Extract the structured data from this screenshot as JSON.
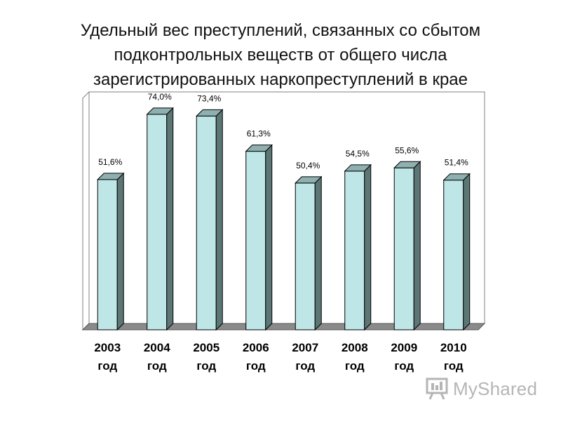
{
  "title_lines": [
    "Удельный вес преступлений, связанных со сбытом",
    "подконтрольных веществ от общего числа",
    "зарегистрированных наркопреступлений в крае"
  ],
  "watermark": {
    "text": "MyShared",
    "icon": "presentation-board-icon"
  },
  "colors": {
    "bar_front": "#bfe6e6",
    "bar_side": "#5c7575",
    "bar_top": "#8fb0b0",
    "floor": "#8a8a8a",
    "wall": "#ffffff"
  },
  "chart_data": {
    "type": "bar",
    "title": "Удельный вес преступлений, связанных со сбытом подконтрольных веществ от общего числа зарегистрированных наркопреступлений в крае",
    "categories": [
      "2003",
      "2004",
      "2005",
      "2006",
      "2007",
      "2008",
      "2009",
      "2010"
    ],
    "category_suffix": "год",
    "values": [
      51.6,
      74.0,
      73.4,
      61.3,
      50.4,
      54.5,
      55.6,
      51.4
    ],
    "value_labels": [
      "51,6%",
      "74,0%",
      "73,4%",
      "61,3%",
      "50,4%",
      "54,5%",
      "55,6%",
      "51,4%"
    ],
    "ylim": [
      0,
      80
    ],
    "grid": false,
    "legend": "none",
    "style": "3d-column"
  }
}
